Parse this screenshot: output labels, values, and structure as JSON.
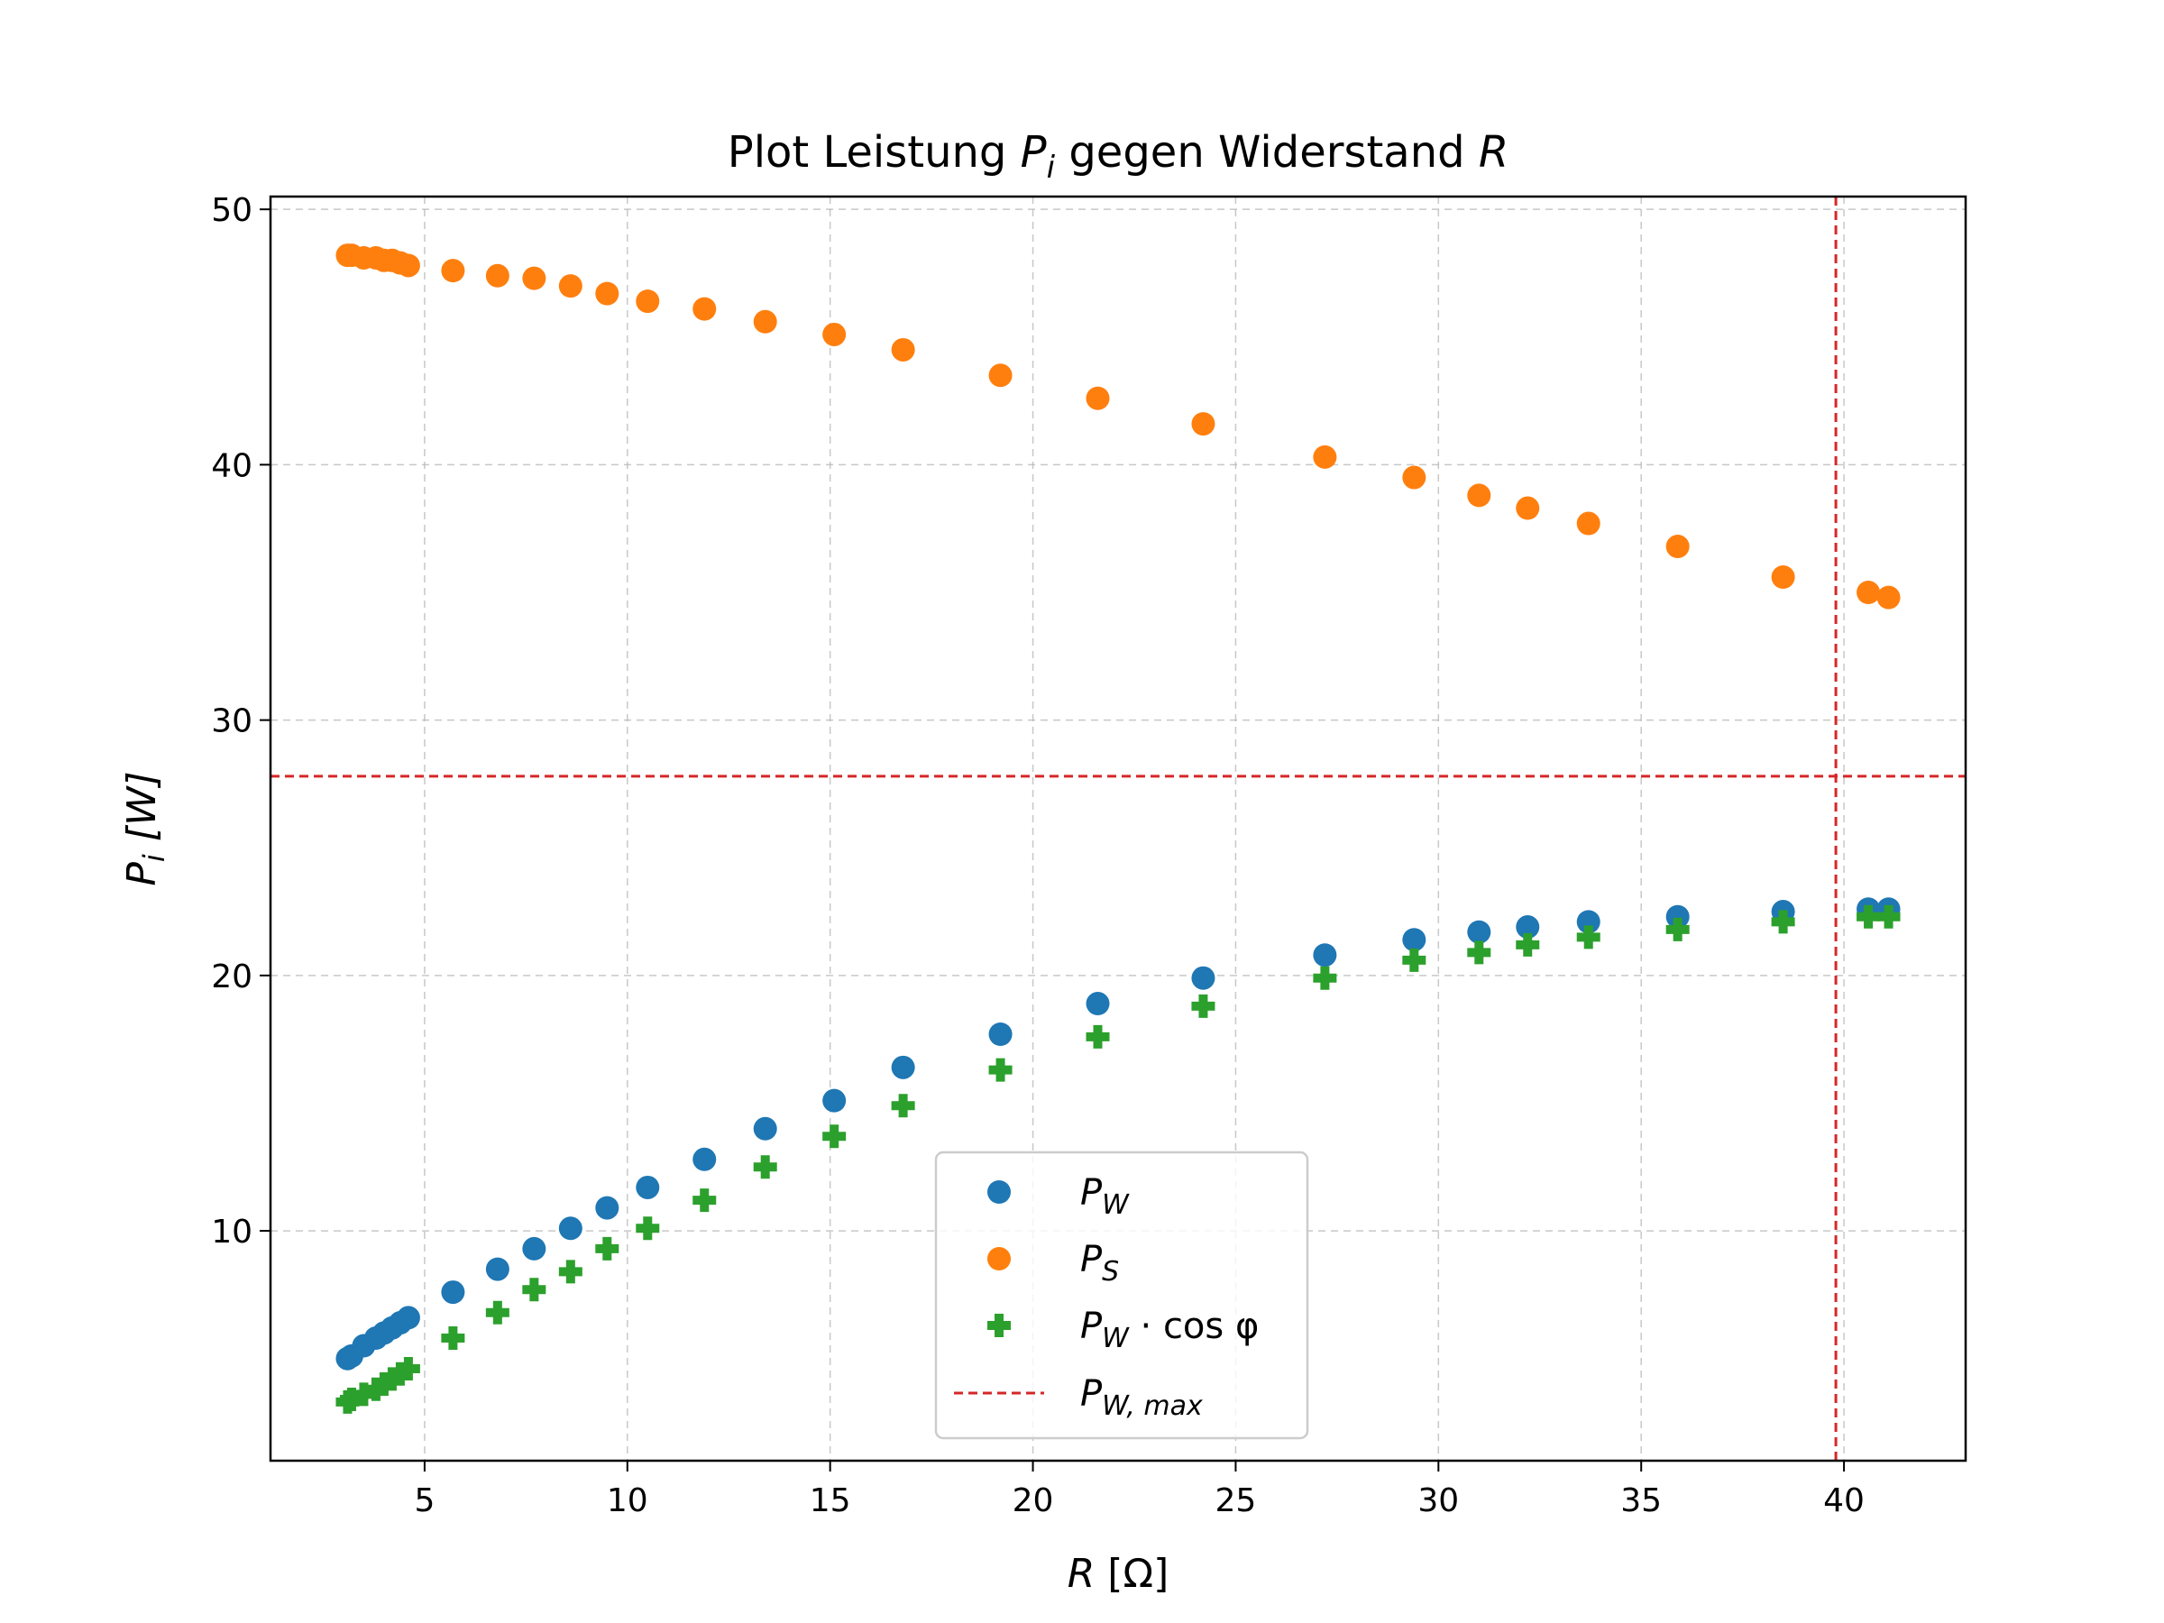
{
  "chart_data": {
    "type": "scatter",
    "title": {
      "prefix": "Plot Leistung ",
      "var1": "P",
      "var1_sub": "i",
      "middle": " gegen Widerstand ",
      "var2": "R"
    },
    "xlabel": {
      "var": "R",
      "unit": " [Ω]"
    },
    "ylabel": {
      "var": "P",
      "sub": "i",
      "unit": " [W]"
    },
    "xlim": [
      1.2,
      43.0
    ],
    "ylim": [
      1.0,
      50.5
    ],
    "xticks": [
      5,
      10,
      15,
      20,
      25,
      30,
      35,
      40
    ],
    "yticks": [
      10,
      20,
      30,
      40,
      50
    ],
    "grid": true,
    "legend_position": "lower center",
    "reference_lines": {
      "vertical_x": 39.8,
      "horizontal_y": 27.8,
      "color": "#d62728"
    },
    "x": [
      3.1,
      3.2,
      3.5,
      3.8,
      4.0,
      4.2,
      4.4,
      4.6,
      5.7,
      6.8,
      7.7,
      8.6,
      9.5,
      10.5,
      11.9,
      13.4,
      15.1,
      16.8,
      19.2,
      21.6,
      24.2,
      27.2,
      29.4,
      31.0,
      32.2,
      33.7,
      35.9,
      38.5,
      40.6,
      41.1
    ],
    "series": [
      {
        "name": "P_W",
        "marker": "circle",
        "color": "#1f77b4",
        "values": [
          5.0,
          5.1,
          5.5,
          5.8,
          6.0,
          6.2,
          6.4,
          6.6,
          7.6,
          8.5,
          9.3,
          10.1,
          10.9,
          11.7,
          12.8,
          14.0,
          15.1,
          16.4,
          17.7,
          18.9,
          19.9,
          20.8,
          21.4,
          21.7,
          21.9,
          22.1,
          22.3,
          22.5,
          22.6,
          22.6
        ]
      },
      {
        "name": "P_S",
        "marker": "circle",
        "color": "#ff7f0e",
        "values": [
          48.2,
          48.2,
          48.1,
          48.1,
          48.0,
          48.0,
          47.9,
          47.8,
          47.6,
          47.4,
          47.3,
          47.0,
          46.7,
          46.4,
          46.1,
          45.6,
          45.1,
          44.5,
          43.5,
          42.6,
          41.6,
          40.3,
          39.5,
          38.8,
          38.3,
          37.7,
          36.8,
          35.6,
          35.0,
          34.8
        ]
      },
      {
        "name": "P_W·cos φ",
        "marker": "plus",
        "color": "#2ca02c",
        "values": [
          3.3,
          3.4,
          3.6,
          3.8,
          4.0,
          4.2,
          4.4,
          4.6,
          5.8,
          6.8,
          7.7,
          8.4,
          9.3,
          10.1,
          11.2,
          12.5,
          13.7,
          14.9,
          16.3,
          17.6,
          18.8,
          19.9,
          20.6,
          20.9,
          21.2,
          21.5,
          21.8,
          22.1,
          22.3,
          22.3
        ]
      }
    ],
    "legend": [
      {
        "marker": "circle",
        "color": "#1f77b4",
        "main": "P",
        "sub": "W",
        "suffix": ""
      },
      {
        "marker": "circle",
        "color": "#ff7f0e",
        "main": "P",
        "sub": "S",
        "suffix": ""
      },
      {
        "marker": "plus",
        "color": "#2ca02c",
        "main": "P",
        "sub": "W",
        "suffix": " · cos φ"
      },
      {
        "marker": "dash",
        "color": "#d62728",
        "main": "P",
        "sub": "W, max",
        "suffix": ""
      }
    ]
  }
}
